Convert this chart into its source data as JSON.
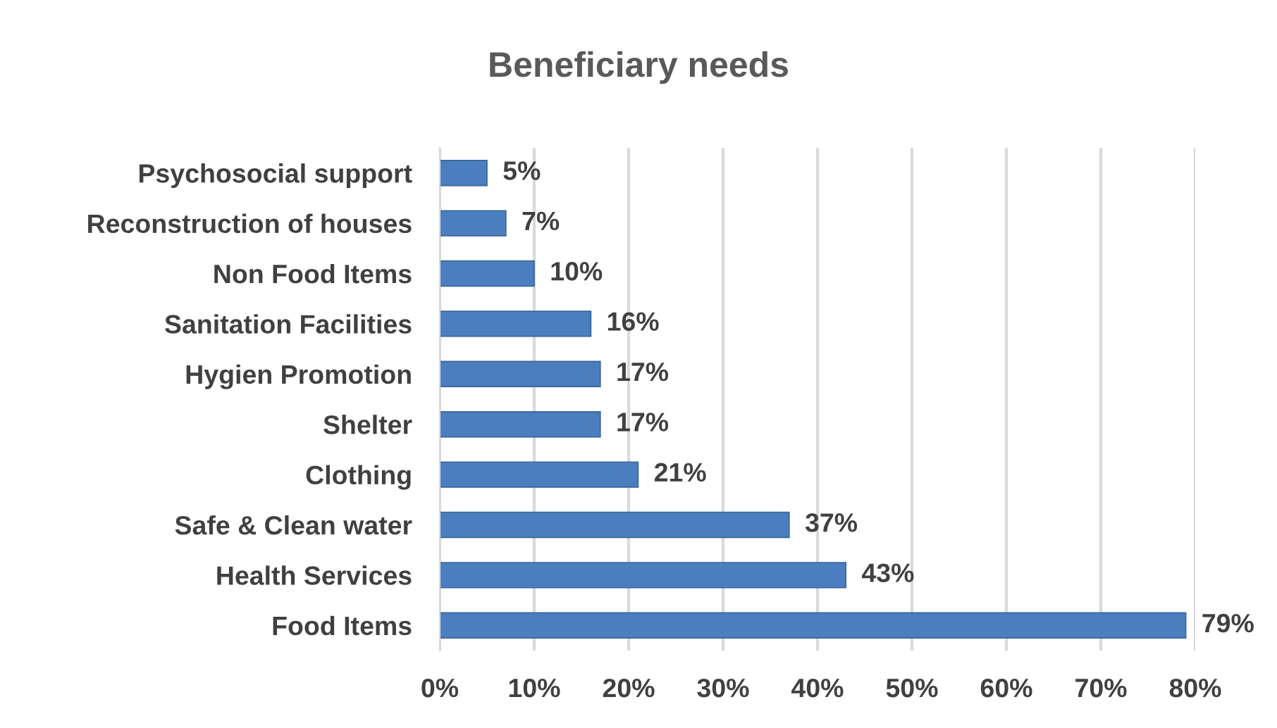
{
  "chart_data": {
    "type": "bar",
    "orientation": "horizontal",
    "title": "Beneficiary needs",
    "categories": [
      "Psychosocial support",
      "Reconstruction of houses",
      "Non Food Items",
      "Sanitation Facilities",
      "Hygien Promotion",
      "Shelter",
      "Clothing",
      "Safe & Clean water",
      "Health Services",
      "Food Items"
    ],
    "values": [
      5,
      7,
      10,
      16,
      17,
      17,
      21,
      37,
      43,
      79
    ],
    "value_labels": [
      "5%",
      "7%",
      "10%",
      "16%",
      "17%",
      "17%",
      "21%",
      "37%",
      "43%",
      "79%"
    ],
    "color": "#4a7ebf",
    "xlim": [
      0,
      80
    ],
    "xticks": [
      {
        "value": 0,
        "label": "0%"
      },
      {
        "value": 10,
        "label": "10%"
      },
      {
        "value": 20,
        "label": "20%"
      },
      {
        "value": 30,
        "label": "30%"
      },
      {
        "value": 40,
        "label": "40%"
      },
      {
        "value": 50,
        "label": "50%"
      },
      {
        "value": 60,
        "label": "60%"
      },
      {
        "value": 70,
        "label": "70%"
      },
      {
        "value": 80,
        "label": "80%"
      }
    ],
    "grid": "x",
    "legend": false
  }
}
